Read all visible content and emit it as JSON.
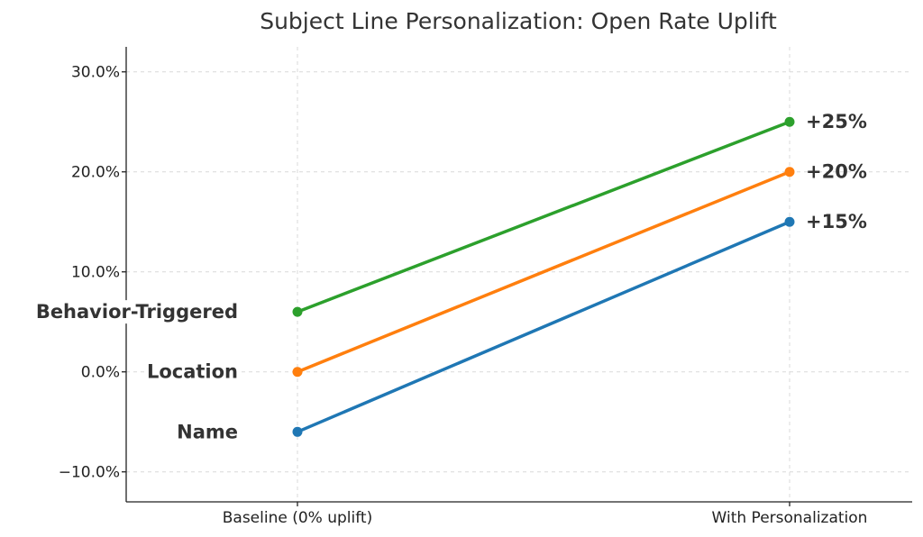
{
  "chart_data": {
    "type": "line",
    "title": "Subject Line Personalization: Open Rate Uplift",
    "xlabel": "",
    "ylabel": "",
    "categories": [
      "Baseline (0% uplift)",
      "With Personalization"
    ],
    "y_ticks": [
      -10,
      0,
      10,
      20,
      30
    ],
    "y_tick_labels": [
      "−10.0%",
      "0.0%",
      "10.0%",
      "20.0%",
      "30.0%"
    ],
    "ylim": [
      -13,
      32.5
    ],
    "grid": true,
    "series": [
      {
        "name": "Name",
        "values": [
          -6,
          15
        ],
        "end_label": "+15%",
        "color": "#1f77b4"
      },
      {
        "name": "Location",
        "values": [
          0,
          20
        ],
        "end_label": "+20%",
        "color": "#ff7f0e"
      },
      {
        "name": "Behavior-Triggered",
        "values": [
          6,
          25
        ],
        "end_label": "+25%",
        "color": "#2ca02c"
      }
    ]
  }
}
